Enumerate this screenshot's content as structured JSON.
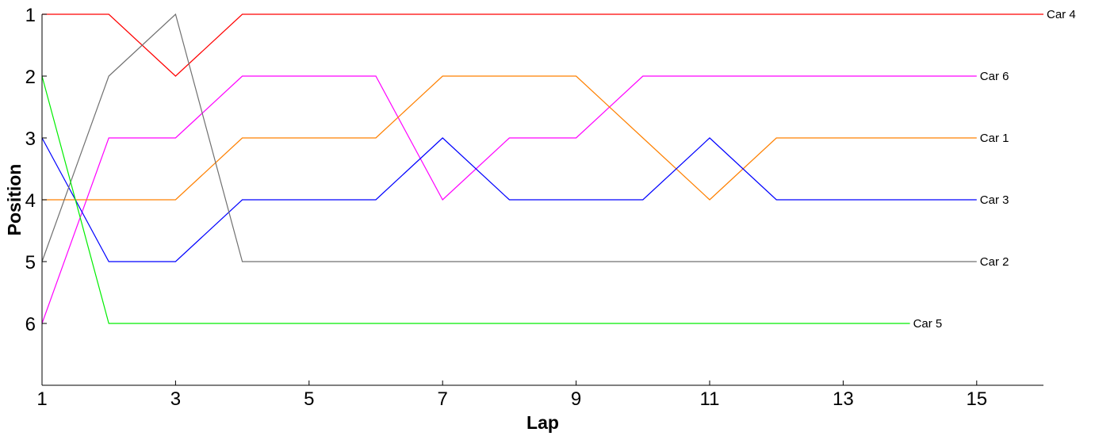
{
  "chart_data": {
    "type": "line",
    "xlabel": "Lap",
    "ylabel": "Position",
    "xlim": [
      1,
      16
    ],
    "ylim": [
      7,
      1
    ],
    "y_inverted": true,
    "x_ticks": [
      1,
      3,
      5,
      7,
      9,
      11,
      13,
      15
    ],
    "y_ticks": [
      1,
      2,
      3,
      4,
      5,
      6
    ],
    "grid": false,
    "legend": "none",
    "series": [
      {
        "name": "Car 4",
        "color": "#ff0000",
        "x": [
          1,
          2,
          3,
          4,
          5,
          6,
          7,
          8,
          9,
          10,
          11,
          12,
          13,
          14,
          15,
          16
        ],
        "y": [
          1,
          1,
          2,
          1,
          1,
          1,
          1,
          1,
          1,
          1,
          1,
          1,
          1,
          1,
          1,
          1
        ]
      },
      {
        "name": "Car 6",
        "color": "#ff00ff",
        "x": [
          1,
          2,
          3,
          4,
          5,
          6,
          7,
          8,
          9,
          10,
          11,
          12,
          13,
          14,
          15
        ],
        "y": [
          6,
          3,
          3,
          2,
          2,
          2,
          4,
          3,
          3,
          2,
          2,
          2,
          2,
          2,
          2
        ]
      },
      {
        "name": "Car 1",
        "color": "#ff8000",
        "x": [
          1,
          2,
          3,
          4,
          5,
          6,
          7,
          8,
          9,
          10,
          11,
          12,
          13,
          14,
          15
        ],
        "y": [
          4,
          4,
          4,
          3,
          3,
          3,
          2,
          2,
          2,
          3,
          4,
          3,
          3,
          3,
          3
        ]
      },
      {
        "name": "Car 3",
        "color": "#0000ff",
        "x": [
          1,
          2,
          3,
          4,
          5,
          6,
          7,
          8,
          9,
          10,
          11,
          12,
          13,
          14,
          15
        ],
        "y": [
          3,
          5,
          5,
          4,
          4,
          4,
          3,
          4,
          4,
          4,
          3,
          4,
          4,
          4,
          4
        ]
      },
      {
        "name": "Car 2",
        "color": "#707070",
        "x": [
          1,
          2,
          3,
          4,
          5,
          6,
          7,
          8,
          9,
          10,
          11,
          12,
          13,
          14,
          15
        ],
        "y": [
          5,
          2,
          1,
          5,
          5,
          5,
          5,
          5,
          5,
          5,
          5,
          5,
          5,
          5,
          5
        ]
      },
      {
        "name": "Car 5",
        "color": "#00ee00",
        "x": [
          1,
          2,
          3,
          4,
          5,
          6,
          7,
          8,
          9,
          10,
          11,
          12,
          13,
          14
        ],
        "y": [
          2,
          6,
          6,
          6,
          6,
          6,
          6,
          6,
          6,
          6,
          6,
          6,
          6,
          6
        ]
      }
    ]
  }
}
